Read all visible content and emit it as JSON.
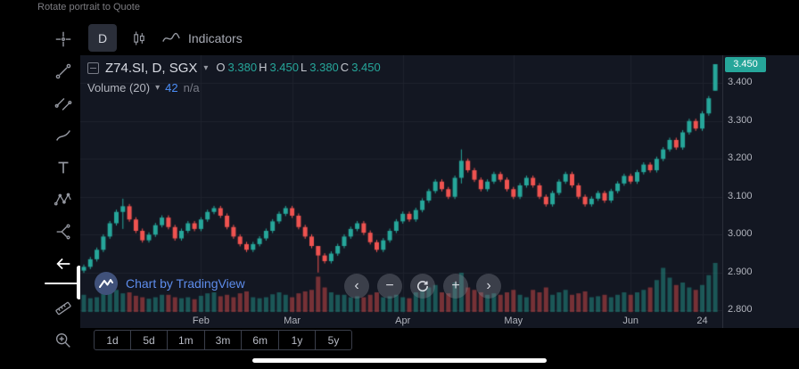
{
  "status_bar": {
    "text": "Rotate portrait to Quote"
  },
  "toolbar": {
    "interval_label": "D",
    "indicators_label": "Indicators"
  },
  "drawing_toolbar": {
    "tools": [
      "crosshair-icon",
      "trend-line-icon",
      "parallel-channel-icon",
      "brush-icon",
      "text-tool-icon",
      "xabcd-pattern-icon",
      "forecast-icon",
      "hide-toolbar-arrow-icon",
      "ruler-icon",
      "zoom-in-icon"
    ]
  },
  "legend": {
    "symbol": "Z74.SI, D, SGX",
    "ohlc": [
      {
        "label": "O",
        "value": "3.380"
      },
      {
        "label": "H",
        "value": "3.450"
      },
      {
        "label": "L",
        "value": "3.380"
      },
      {
        "label": "C",
        "value": "3.450"
      }
    ],
    "volume_label": "Volume (20)",
    "volume_value": "42",
    "volume_ma": "n/a"
  },
  "watermark": {
    "text": "Chart by TradingView"
  },
  "price_axis": {
    "last_price": "3.450",
    "labels": [
      "3.400",
      "3.300",
      "3.200",
      "3.100",
      "3.000",
      "2.900",
      "2.800"
    ]
  },
  "nav_buttons": [
    {
      "name": "pan-left-button",
      "glyph": "‹"
    },
    {
      "name": "zoom-out-button",
      "glyph": "−"
    },
    {
      "name": "reset-chart-button",
      "glyph": ""
    },
    {
      "name": "zoom-in-button",
      "glyph": "+"
    },
    {
      "name": "pan-right-button",
      "glyph": "›"
    }
  ],
  "timeframe_buttons": [
    "1d",
    "5d",
    "1m",
    "3m",
    "6m",
    "1y",
    "5y"
  ],
  "colors": {
    "up": "#26a69a",
    "down": "#ef5350",
    "vol_up": "rgba(38,166,154,0.45)",
    "vol_down": "rgba(239,83,80,0.45)",
    "grid": "#1e222d",
    "chart_bg": "#131722",
    "badge_bg": "#26a69a",
    "axis_text": "#b2b5be",
    "accent_blue": "#4c8ef7"
  },
  "chart_data": {
    "type": "candlestick+volume",
    "symbol": "Z74.SI",
    "interval": "D",
    "exchange": "SGX",
    "last_candle": {
      "o": 3.38,
      "h": 3.45,
      "l": 3.38,
      "c": 3.45
    },
    "price_gridlines": [
      3.4,
      3.3,
      3.2,
      3.1,
      3.0,
      2.9,
      2.8
    ],
    "ylim": [
      2.787,
      3.469
    ],
    "x_ticks": [
      {
        "index": 18,
        "label": "Feb"
      },
      {
        "index": 32,
        "label": "Mar"
      },
      {
        "index": 49,
        "label": "Apr"
      },
      {
        "index": 66,
        "label": "May"
      },
      {
        "index": 84,
        "label": "Jun"
      },
      {
        "index": 95,
        "label": "24"
      }
    ],
    "closes": [
      2.915,
      2.935,
      2.96,
      2.995,
      3.03,
      3.06,
      3.075,
      3.04,
      3.01,
      2.985,
      3.0,
      3.025,
      3.045,
      3.02,
      2.99,
      3.01,
      3.03,
      3.015,
      3.04,
      3.06,
      3.07,
      3.05,
      3.02,
      2.995,
      2.975,
      2.96,
      2.975,
      2.99,
      3.01,
      3.035,
      3.055,
      3.07,
      3.05,
      3.02,
      2.995,
      2.97,
      2.945,
      2.93,
      2.95,
      2.97,
      2.995,
      3.015,
      3.03,
      3.005,
      2.98,
      2.96,
      2.985,
      3.01,
      3.035,
      3.055,
      3.04,
      3.065,
      3.09,
      3.115,
      3.14,
      3.12,
      3.1,
      3.15,
      3.195,
      3.17,
      3.145,
      3.12,
      3.14,
      3.16,
      3.145,
      3.12,
      3.1,
      3.13,
      3.15,
      3.13,
      3.1,
      3.08,
      3.11,
      3.14,
      3.16,
      3.13,
      3.1,
      3.08,
      3.095,
      3.11,
      3.09,
      3.115,
      3.135,
      3.155,
      3.14,
      3.165,
      3.185,
      3.17,
      3.2,
      3.225,
      3.25,
      3.23,
      3.27,
      3.3,
      3.28,
      3.32,
      3.36,
      3.45
    ],
    "volumes": [
      0.35,
      0.28,
      0.3,
      0.42,
      0.5,
      0.45,
      0.38,
      0.4,
      0.33,
      0.3,
      0.27,
      0.3,
      0.35,
      0.35,
      0.3,
      0.28,
      0.3,
      0.26,
      0.33,
      0.38,
      0.4,
      0.32,
      0.35,
      0.3,
      0.38,
      0.42,
      0.3,
      0.28,
      0.3,
      0.36,
      0.4,
      0.35,
      0.3,
      0.38,
      0.42,
      0.45,
      0.72,
      0.5,
      0.4,
      0.35,
      0.35,
      0.3,
      0.32,
      0.3,
      0.35,
      0.4,
      0.3,
      0.32,
      0.35,
      0.3,
      0.28,
      0.4,
      0.45,
      0.5,
      0.55,
      0.4,
      0.38,
      0.6,
      0.8,
      0.5,
      0.45,
      0.4,
      0.35,
      0.38,
      0.35,
      0.4,
      0.45,
      0.35,
      0.3,
      0.45,
      0.4,
      0.5,
      0.35,
      0.4,
      0.45,
      0.35,
      0.38,
      0.42,
      0.3,
      0.32,
      0.35,
      0.3,
      0.35,
      0.4,
      0.35,
      0.4,
      0.45,
      0.5,
      0.65,
      0.9,
      0.7,
      0.55,
      0.6,
      0.5,
      0.45,
      0.55,
      0.75,
      1.0
    ],
    "wick_overrides": {
      "6": [
        3.095,
        3.015
      ],
      "36": [
        2.965,
        2.9
      ],
      "58": [
        3.225,
        3.135
      ],
      "97": [
        3.45,
        3.38
      ]
    },
    "open_overrides": {
      "97": 3.38
    }
  }
}
